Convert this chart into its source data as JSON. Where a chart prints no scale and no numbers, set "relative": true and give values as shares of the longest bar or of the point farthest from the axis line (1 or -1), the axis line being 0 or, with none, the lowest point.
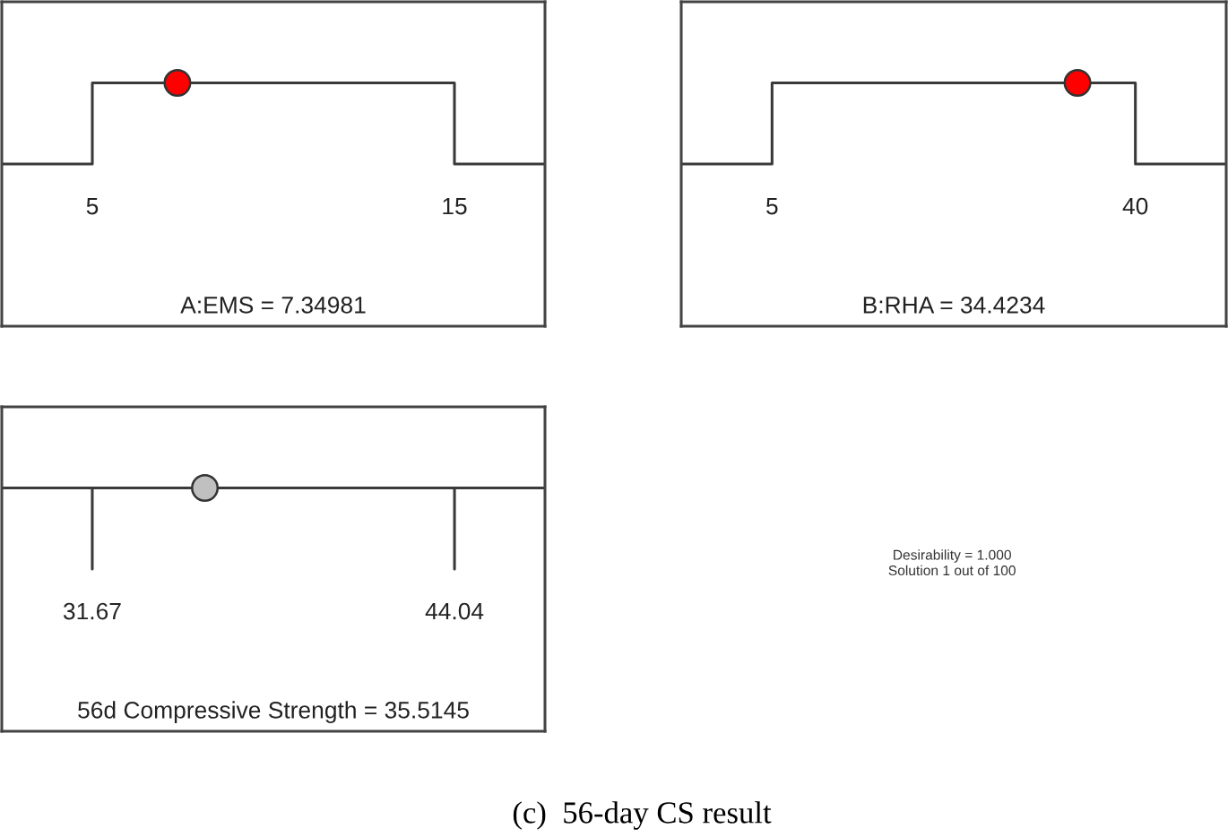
{
  "chart_data": [
    {
      "type": "line",
      "relative": true,
      "xlabel": "A:EMS = 7.34981",
      "xlim": [
        2.5,
        17.5
      ],
      "xticks": [
        5,
        15
      ],
      "series": [
        {
          "type": "line",
          "color": "#3a3a3a",
          "x": [
            2.5,
            5,
            5,
            15,
            15,
            17.5
          ],
          "values": [
            0,
            0,
            1,
            1,
            0,
            0
          ]
        },
        {
          "type": "scatter",
          "color": "#ff0000",
          "marker": "circle",
          "x": [
            7.34981
          ],
          "values": [
            1
          ]
        }
      ]
    },
    {
      "type": "line",
      "relative": true,
      "xlabel": "B:RHA = 34.4234",
      "xlim": [
        -3.75,
        48.75
      ],
      "xticks": [
        5,
        40
      ],
      "series": [
        {
          "type": "line",
          "color": "#3a3a3a",
          "x": [
            -3.75,
            5,
            5,
            40,
            40,
            48.75
          ],
          "values": [
            0,
            0,
            1,
            1,
            0,
            0
          ]
        },
        {
          "type": "scatter",
          "color": "#ff0000",
          "marker": "circle",
          "x": [
            34.4234
          ],
          "values": [
            1
          ]
        }
      ]
    },
    {
      "type": "line",
      "relative": true,
      "xlabel": "56d Compressive Strength = 35.5145",
      "xlim": [
        28.58,
        47.13
      ],
      "xticks": [
        31.67,
        44.04
      ],
      "series": [
        {
          "type": "line",
          "color": "#3a3a3a",
          "x": [
            28.58,
            31.67,
            31.67,
            31.67,
            44.04,
            44.04,
            44.04,
            47.13
          ],
          "values": [
            1,
            1,
            0,
            1,
            1,
            0,
            1,
            1
          ]
        },
        {
          "type": "scatter",
          "color": "#c0c0c0",
          "marker": "circle",
          "x": [
            35.5145
          ],
          "values": [
            1
          ]
        }
      ]
    },
    {
      "type": "other",
      "annotations": [
        "Desirability = 1.000",
        "Solution 1 out of 100",
        "(c)  56-day CS result"
      ]
    }
  ]
}
